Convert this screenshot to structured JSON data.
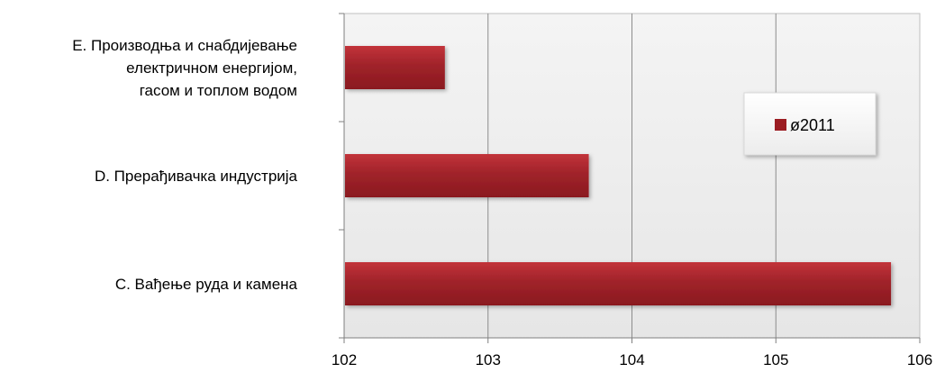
{
  "chart_data": {
    "type": "bar",
    "orientation": "horizontal",
    "categories": [
      "E. Производња и снабдијевање електричном енергијом, гасом и топлом водом",
      "D. Прерађивачка индустрија",
      "C. Вађење руда и камена"
    ],
    "category_label_lines": [
      [
        "E. Производња и снабдијевање",
        "електричном енергијом,",
        "гасом и топлом водом"
      ],
      [
        "D. Прерађивачка индустрија"
      ],
      [
        "C. Вађење руда и камена"
      ]
    ],
    "series": [
      {
        "name": "ø2011",
        "values": [
          102.7,
          103.7,
          105.8
        ],
        "color": "#9b1c22"
      }
    ],
    "xlim": [
      102,
      106
    ],
    "xticks": [
      "102",
      "103",
      "104",
      "105",
      "106"
    ],
    "grid": true,
    "legend": "right"
  }
}
